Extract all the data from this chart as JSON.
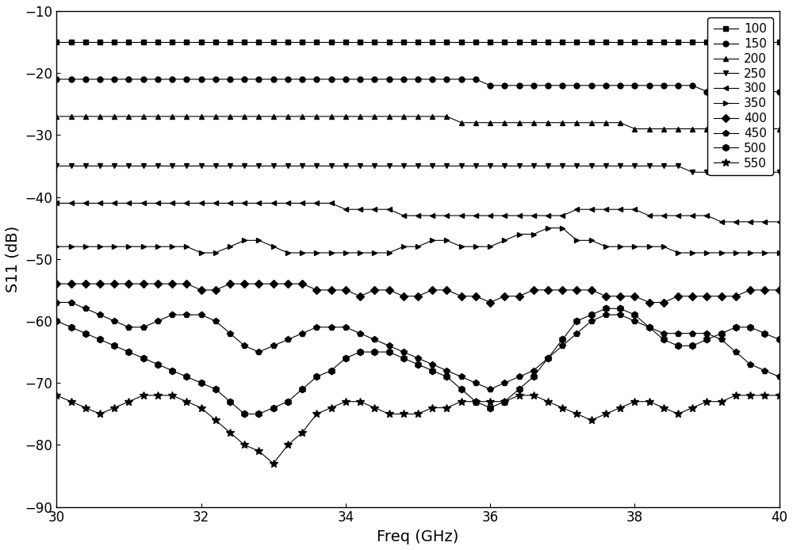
{
  "title": "",
  "xlabel": "Freq (GHz)",
  "ylabel": "S11 (dB)",
  "xlim": [
    30,
    40
  ],
  "ylim": [
    -90,
    -10
  ],
  "xticks": [
    30,
    32,
    34,
    36,
    38,
    40
  ],
  "yticks": [
    -90,
    -80,
    -70,
    -60,
    -50,
    -40,
    -30,
    -20,
    -10
  ],
  "freq_start": 30.0,
  "freq_stop": 40.0,
  "freq_step": 0.2,
  "series": [
    {
      "label": "100",
      "marker": "s",
      "markersize": 5,
      "values": [
        -15,
        -15,
        -15,
        -15,
        -15,
        -15,
        -15,
        -15,
        -15,
        -15,
        -15,
        -15,
        -15,
        -15,
        -15,
        -15,
        -15,
        -15,
        -15,
        -15,
        -15,
        -15,
        -15,
        -15,
        -15,
        -15,
        -15,
        -15,
        -15,
        -15,
        -15,
        -15,
        -15,
        -15,
        -15,
        -15,
        -15,
        -15,
        -15,
        -15,
        -15,
        -15,
        -15,
        -15,
        -15,
        -15,
        -15,
        -15,
        -15,
        -15,
        -15
      ]
    },
    {
      "label": "150",
      "marker": "o",
      "markersize": 5,
      "values": [
        -21,
        -21,
        -21,
        -21,
        -21,
        -21,
        -21,
        -21,
        -21,
        -21,
        -21,
        -21,
        -21,
        -21,
        -21,
        -21,
        -21,
        -21,
        -21,
        -21,
        -21,
        -21,
        -21,
        -21,
        -21,
        -21,
        -21,
        -21,
        -21,
        -21,
        -22,
        -22,
        -22,
        -22,
        -22,
        -22,
        -22,
        -22,
        -22,
        -22,
        -22,
        -22,
        -22,
        -22,
        -22,
        -23,
        -23,
        -23,
        -23,
        -23,
        -23
      ]
    },
    {
      "label": "200",
      "marker": "^",
      "markersize": 5,
      "values": [
        -27,
        -27,
        -27,
        -27,
        -27,
        -27,
        -27,
        -27,
        -27,
        -27,
        -27,
        -27,
        -27,
        -27,
        -27,
        -27,
        -27,
        -27,
        -27,
        -27,
        -27,
        -27,
        -27,
        -27,
        -27,
        -27,
        -27,
        -27,
        -28,
        -28,
        -28,
        -28,
        -28,
        -28,
        -28,
        -28,
        -28,
        -28,
        -28,
        -28,
        -29,
        -29,
        -29,
        -29,
        -29,
        -29,
        -29,
        -29,
        -29,
        -29,
        -29
      ]
    },
    {
      "label": "250",
      "marker": "v",
      "markersize": 5,
      "values": [
        -35,
        -35,
        -35,
        -35,
        -35,
        -35,
        -35,
        -35,
        -35,
        -35,
        -35,
        -35,
        -35,
        -35,
        -35,
        -35,
        -35,
        -35,
        -35,
        -35,
        -35,
        -35,
        -35,
        -35,
        -35,
        -35,
        -35,
        -35,
        -35,
        -35,
        -35,
        -35,
        -35,
        -35,
        -35,
        -35,
        -35,
        -35,
        -35,
        -35,
        -35,
        -35,
        -35,
        -35,
        -36,
        -36,
        -36,
        -36,
        -36,
        -36,
        -36
      ]
    },
    {
      "label": "300",
      "marker": "<",
      "markersize": 5,
      "values": [
        -41,
        -41,
        -41,
        -41,
        -41,
        -41,
        -41,
        -41,
        -41,
        -41,
        -41,
        -41,
        -41,
        -41,
        -41,
        -41,
        -41,
        -41,
        -41,
        -41,
        -42,
        -42,
        -42,
        -42,
        -43,
        -43,
        -43,
        -43,
        -43,
        -43,
        -43,
        -43,
        -43,
        -43,
        -43,
        -43,
        -42,
        -42,
        -42,
        -42,
        -42,
        -43,
        -43,
        -43,
        -43,
        -43,
        -44,
        -44,
        -44,
        -44,
        -44
      ]
    },
    {
      "label": "350",
      "marker": ">",
      "markersize": 5,
      "values": [
        -48,
        -48,
        -48,
        -48,
        -48,
        -48,
        -48,
        -48,
        -48,
        -48,
        -49,
        -49,
        -48,
        -47,
        -47,
        -48,
        -49,
        -49,
        -49,
        -49,
        -49,
        -49,
        -49,
        -49,
        -48,
        -48,
        -47,
        -47,
        -48,
        -48,
        -48,
        -47,
        -46,
        -46,
        -45,
        -45,
        -47,
        -47,
        -48,
        -48,
        -48,
        -48,
        -48,
        -49,
        -49,
        -49,
        -49,
        -49,
        -49,
        -49,
        -49
      ]
    },
    {
      "label": "400",
      "marker": "D",
      "markersize": 5,
      "values": [
        -54,
        -54,
        -54,
        -54,
        -54,
        -54,
        -54,
        -54,
        -54,
        -54,
        -55,
        -55,
        -54,
        -54,
        -54,
        -54,
        -54,
        -54,
        -55,
        -55,
        -55,
        -56,
        -55,
        -55,
        -56,
        -56,
        -55,
        -55,
        -56,
        -56,
        -57,
        -56,
        -56,
        -55,
        -55,
        -55,
        -55,
        -55,
        -56,
        -56,
        -56,
        -57,
        -57,
        -56,
        -56,
        -56,
        -56,
        -56,
        -55,
        -55,
        -55
      ]
    },
    {
      "label": "450",
      "marker": "p",
      "markersize": 6,
      "values": [
        -57,
        -57,
        -58,
        -59,
        -60,
        -61,
        -61,
        -60,
        -59,
        -59,
        -59,
        -60,
        -62,
        -64,
        -65,
        -64,
        -63,
        -62,
        -61,
        -61,
        -61,
        -62,
        -63,
        -64,
        -65,
        -66,
        -67,
        -68,
        -69,
        -70,
        -71,
        -70,
        -69,
        -68,
        -66,
        -64,
        -62,
        -60,
        -59,
        -59,
        -60,
        -61,
        -62,
        -62,
        -62,
        -62,
        -63,
        -65,
        -67,
        -68,
        -69
      ]
    },
    {
      "label": "500",
      "marker": "h",
      "markersize": 6,
      "values": [
        -60,
        -61,
        -62,
        -63,
        -64,
        -65,
        -66,
        -67,
        -68,
        -69,
        -70,
        -71,
        -73,
        -75,
        -75,
        -74,
        -73,
        -71,
        -69,
        -68,
        -66,
        -65,
        -65,
        -65,
        -66,
        -67,
        -68,
        -69,
        -71,
        -73,
        -74,
        -73,
        -71,
        -69,
        -66,
        -63,
        -60,
        -59,
        -58,
        -58,
        -59,
        -61,
        -63,
        -64,
        -64,
        -63,
        -62,
        -61,
        -61,
        -62,
        -63
      ]
    },
    {
      "label": "550",
      "marker": "*",
      "markersize": 7,
      "values": [
        -72,
        -73,
        -74,
        -75,
        -74,
        -73,
        -72,
        -72,
        -72,
        -73,
        -74,
        -76,
        -78,
        -80,
        -81,
        -83,
        -80,
        -78,
        -75,
        -74,
        -73,
        -73,
        -74,
        -75,
        -75,
        -75,
        -74,
        -74,
        -73,
        -73,
        -73,
        -73,
        -72,
        -72,
        -73,
        -74,
        -75,
        -76,
        -75,
        -74,
        -73,
        -73,
        -74,
        -75,
        -74,
        -73,
        -73,
        -72,
        -72,
        -72,
        -72
      ]
    }
  ],
  "color": "#000000",
  "linewidth": 0.8,
  "markevery": 1
}
